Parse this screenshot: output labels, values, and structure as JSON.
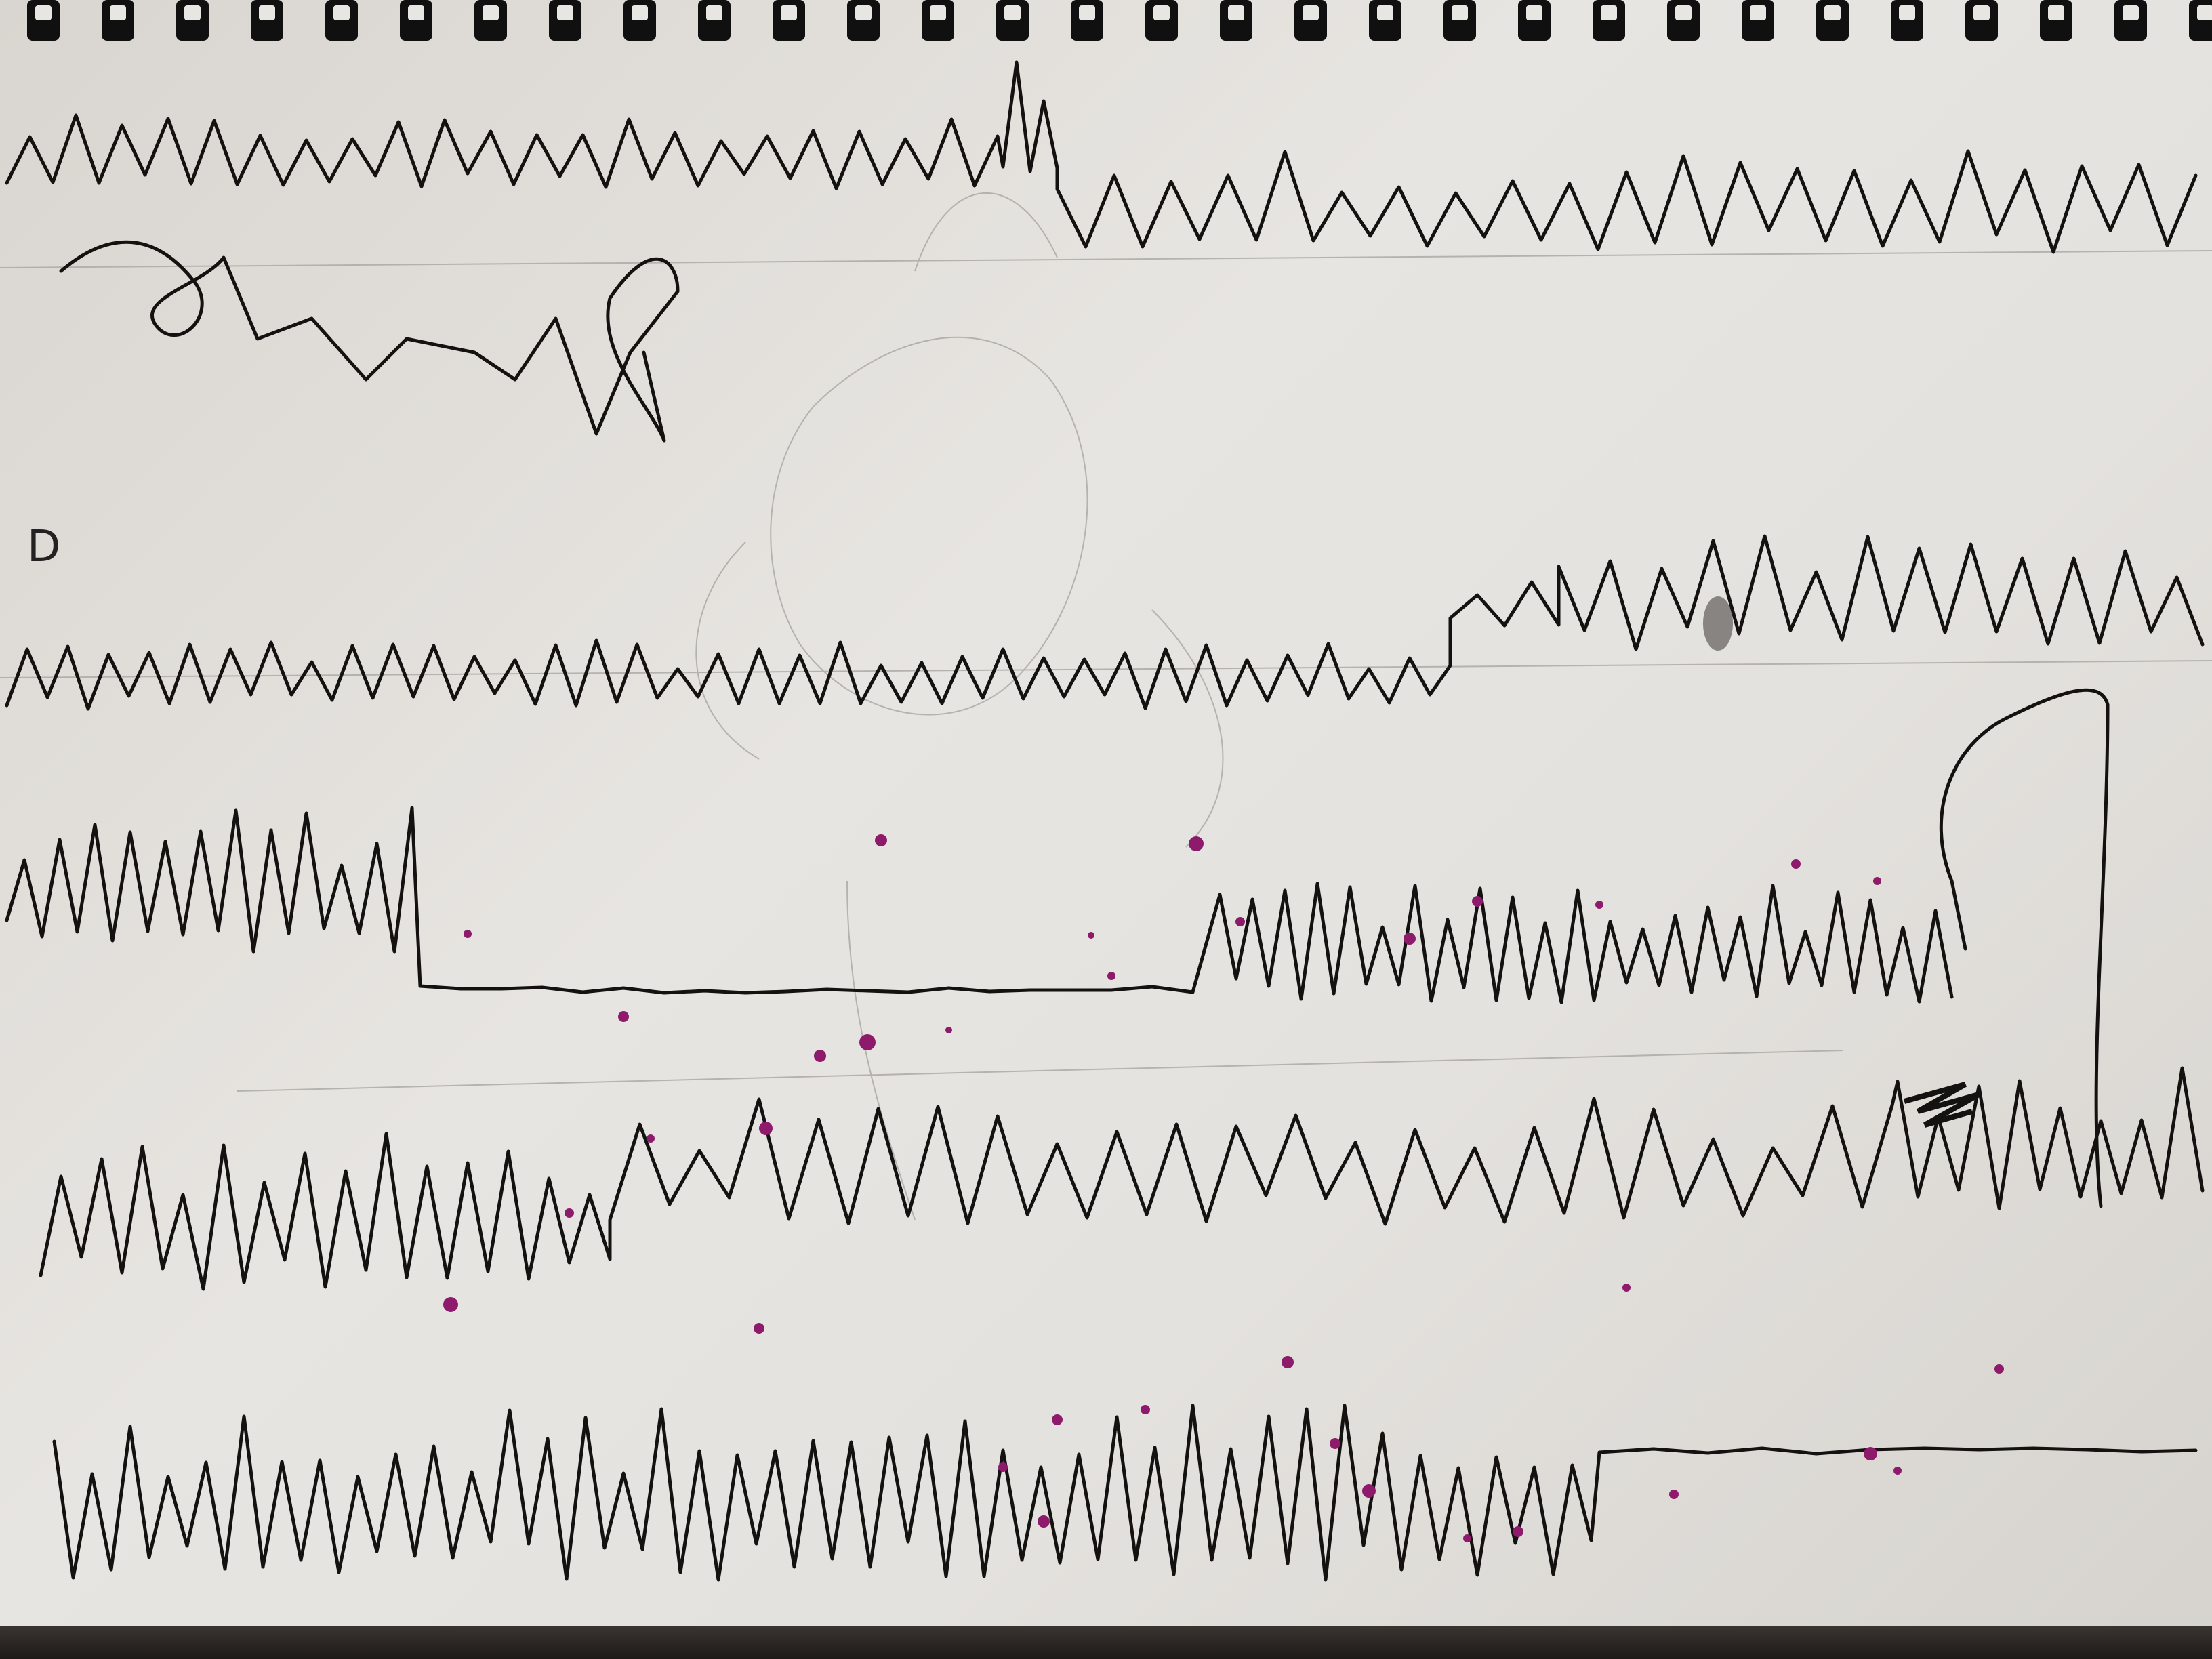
{
  "image": {
    "subject": "sketchbook-page-with-ink-waveform-lines",
    "colors": {
      "paper": "#e7e5e1",
      "ink": "#141210",
      "ink_splatter": "#8e1a6b",
      "pencil": "#a9a6a2",
      "binding_wire": "#101010",
      "binding_holes": "#e8e6e2",
      "background": "#2a2522"
    },
    "binding_ring_count": 30,
    "page_mark": "D",
    "ink_line_count": 6
  }
}
